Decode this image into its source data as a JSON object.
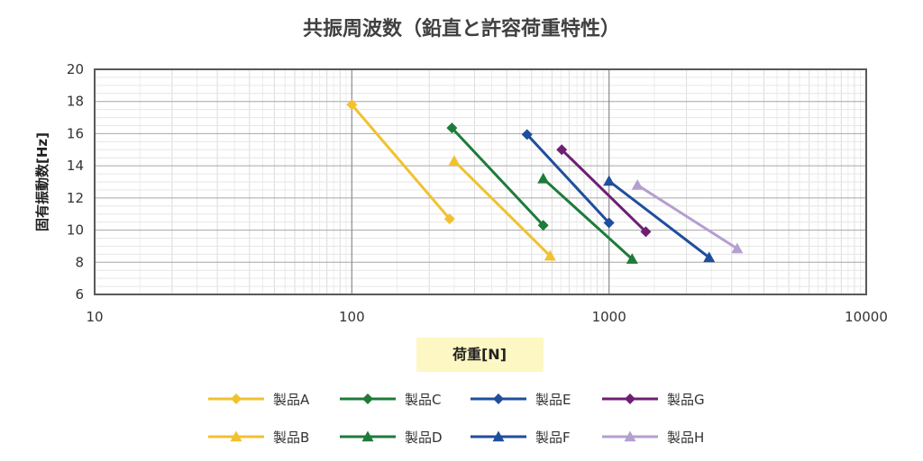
{
  "chart_data": {
    "type": "line",
    "title": "共振周波数（鉛直と許容荷重特性）",
    "xlabel": "荷重[N]",
    "ylabel": "固有振動数[Hz]",
    "x_scale": "log",
    "xlim": [
      10,
      10000
    ],
    "ylim": [
      6,
      20
    ],
    "x_ticks": [
      "10",
      "100",
      "1000",
      "10000"
    ],
    "y_ticks": [
      "6",
      "8",
      "10",
      "12",
      "14",
      "16",
      "18",
      "20"
    ],
    "grid": true,
    "legend_position": "bottom",
    "series": [
      {
        "name": "製品A",
        "marker": "diamond",
        "color": "#f2c12e",
        "x": [
          100,
          240
        ],
        "y": [
          17.8,
          10.7
        ]
      },
      {
        "name": "製品B",
        "marker": "triangle",
        "color": "#f2c12e",
        "x": [
          250,
          590
        ],
        "y": [
          14.3,
          8.4
        ]
      },
      {
        "name": "製品C",
        "marker": "diamond",
        "color": "#1e7b3a",
        "x": [
          245,
          555
        ],
        "y": [
          16.35,
          10.3
        ]
      },
      {
        "name": "製品D",
        "marker": "triangle",
        "color": "#1e7b3a",
        "x": [
          555,
          1230
        ],
        "y": [
          13.2,
          8.2
        ]
      },
      {
        "name": "製品E",
        "marker": "diamond",
        "color": "#1f4e9c",
        "x": [
          480,
          1000
        ],
        "y": [
          15.95,
          10.45
        ]
      },
      {
        "name": "製品F",
        "marker": "triangle",
        "color": "#1f4e9c",
        "x": [
          1000,
          2450
        ],
        "y": [
          13.05,
          8.3
        ]
      },
      {
        "name": "製品G",
        "marker": "diamond",
        "color": "#6d1f73",
        "x": [
          655,
          1390
        ],
        "y": [
          15.0,
          9.9
        ]
      },
      {
        "name": "製品H",
        "marker": "triangle",
        "color": "#b49fd0",
        "x": [
          1290,
          3150
        ],
        "y": [
          12.8,
          8.85
        ]
      }
    ]
  }
}
